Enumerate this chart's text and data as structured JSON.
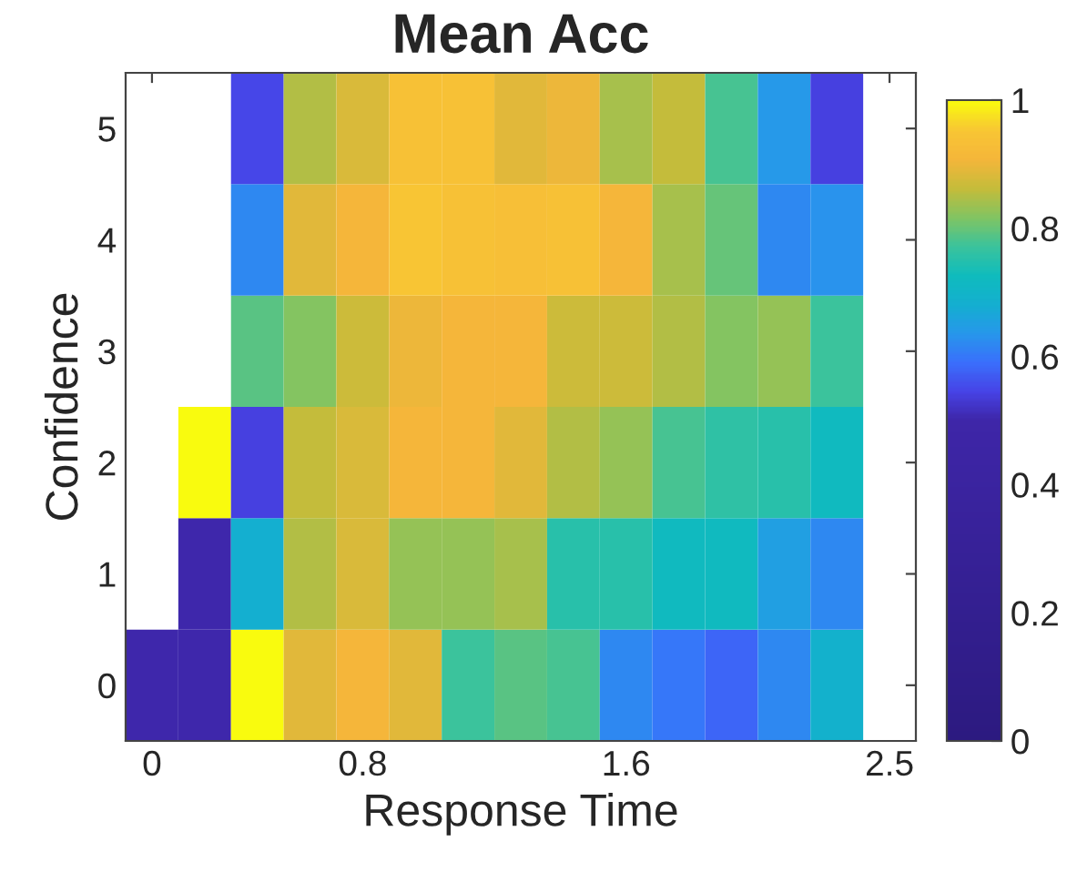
{
  "chart_data": {
    "type": "heatmap",
    "title": "Mean Acc",
    "xlabel": "Response Time",
    "ylabel": "Confidence",
    "categories": [
      "0",
      null,
      null,
      null,
      "0.8",
      null,
      null,
      null,
      null,
      "1.6",
      null,
      null,
      null,
      null,
      "2.5"
    ],
    "y_categories": [
      "5",
      "4",
      "3",
      "2",
      "1",
      "0"
    ],
    "cells": [
      [
        null,
        null,
        0.55,
        0.85,
        0.88,
        0.94,
        0.94,
        0.89,
        0.9,
        0.84,
        0.86,
        0.78,
        0.64,
        0.54,
        null
      ],
      [
        null,
        null,
        0.62,
        0.89,
        0.91,
        0.95,
        0.94,
        0.93,
        0.94,
        0.91,
        0.84,
        0.8,
        0.62,
        0.63,
        null
      ],
      [
        null,
        null,
        0.79,
        0.82,
        0.87,
        0.9,
        0.91,
        0.91,
        0.87,
        0.87,
        0.85,
        0.82,
        0.83,
        0.77,
        null
      ],
      [
        null,
        1.0,
        0.54,
        0.86,
        0.88,
        0.91,
        0.91,
        0.89,
        0.85,
        0.83,
        0.78,
        0.76,
        0.75,
        0.72,
        null
      ],
      [
        null,
        0.5,
        0.68,
        0.85,
        0.88,
        0.83,
        0.83,
        0.84,
        0.75,
        0.75,
        0.72,
        0.72,
        0.65,
        0.62,
        null
      ],
      [
        0.5,
        0.5,
        1.0,
        0.89,
        0.91,
        0.89,
        0.77,
        0.79,
        0.78,
        0.62,
        0.6,
        0.58,
        0.62,
        0.69,
        null
      ]
    ],
    "clim": [
      0,
      1
    ],
    "cticks": [
      0,
      0.2,
      0.4,
      0.6,
      0.8,
      1
    ]
  }
}
